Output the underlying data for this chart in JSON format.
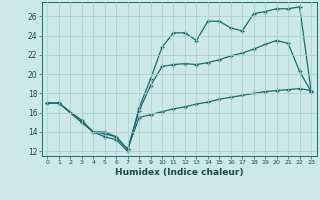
{
  "xlabel": "Humidex (Indice chaleur)",
  "background_color": "#cce8e8",
  "grid_color": "#aacece",
  "line_color": "#1a6e6e",
  "xlim": [
    -0.5,
    23.5
  ],
  "ylim": [
    11.5,
    27.5
  ],
  "xticks": [
    0,
    1,
    2,
    3,
    4,
    5,
    6,
    7,
    8,
    9,
    10,
    11,
    12,
    13,
    14,
    15,
    16,
    17,
    18,
    19,
    20,
    21,
    22,
    23
  ],
  "yticks": [
    12,
    14,
    16,
    18,
    20,
    22,
    24,
    26
  ],
  "line1_x": [
    0,
    1,
    3,
    4,
    5,
    6,
    7,
    8,
    9,
    10,
    11,
    12,
    13,
    14,
    15,
    16,
    17,
    18,
    19,
    20,
    21,
    22,
    23
  ],
  "line1_y": [
    17.0,
    17.0,
    15.0,
    14.0,
    13.5,
    13.2,
    12.0,
    16.5,
    19.5,
    22.8,
    24.3,
    24.3,
    23.5,
    25.5,
    25.5,
    24.8,
    24.5,
    26.3,
    26.5,
    26.8,
    26.8,
    27.0,
    18.3
  ],
  "line2_x": [
    0,
    1,
    3,
    4,
    5,
    6,
    7,
    8,
    9,
    10,
    11,
    12,
    13,
    14,
    15,
    16,
    17,
    18,
    19,
    20,
    21,
    22,
    23
  ],
  "line2_y": [
    17.0,
    17.0,
    15.2,
    14.0,
    13.8,
    13.5,
    12.2,
    16.2,
    18.8,
    20.8,
    21.0,
    21.1,
    21.0,
    21.2,
    21.5,
    21.9,
    22.2,
    22.6,
    23.1,
    23.5,
    23.2,
    20.3,
    18.2
  ],
  "line3_x": [
    0,
    1,
    3,
    4,
    5,
    6,
    7,
    8,
    9,
    10,
    11,
    12,
    13,
    14,
    15,
    16,
    17,
    18,
    19,
    20,
    21,
    22,
    23
  ],
  "line3_y": [
    17.0,
    17.0,
    15.0,
    14.0,
    14.0,
    13.5,
    12.2,
    15.5,
    15.8,
    16.1,
    16.4,
    16.6,
    16.9,
    17.1,
    17.4,
    17.6,
    17.8,
    18.0,
    18.2,
    18.3,
    18.4,
    18.5,
    18.3
  ]
}
